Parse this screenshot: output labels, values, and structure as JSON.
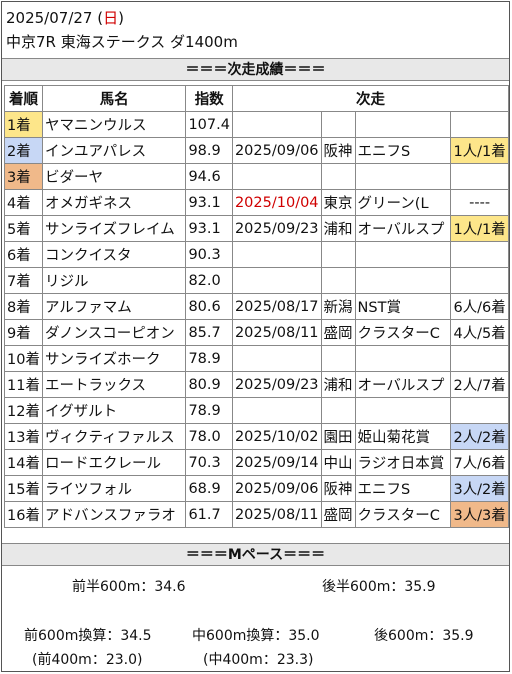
{
  "header": {
    "date_prefix": "2025/07/27 (",
    "weekday": "日",
    "date_suffix": ")",
    "race": "中京7R 東海ステークス ダ1400m"
  },
  "colors": {
    "sunday_red": "#d00000",
    "first_bg": "#fde68a",
    "second_bg": "#c7d7f5",
    "third_bg": "#f0b98a",
    "next_date_red": "#d00000"
  },
  "section_titles": {
    "results": "＝＝＝次走成績＝＝＝",
    "pace": "＝＝＝Mペース＝＝＝"
  },
  "table": {
    "headers": [
      "着順",
      "馬名",
      "指数",
      "次走"
    ],
    "rows": [
      {
        "rank": "1着",
        "name": "ヤマニンウルス",
        "idx": "107.4",
        "date": "",
        "place": "",
        "race": "",
        "result": ""
      },
      {
        "rank": "2着",
        "name": "インユアパレス",
        "idx": "98.9",
        "date": "2025/09/06",
        "place": "阪神",
        "race": "エニフS",
        "result": "1人/1着"
      },
      {
        "rank": "3着",
        "name": "ビダーヤ",
        "idx": "94.6",
        "date": "",
        "place": "",
        "race": "",
        "result": ""
      },
      {
        "rank": "4着",
        "name": "オメガギネス",
        "idx": "93.1",
        "date": "2025/10/04",
        "place": "東京",
        "race": "グリーン(L",
        "result": "----"
      },
      {
        "rank": "5着",
        "name": "サンライズフレイム",
        "idx": "93.1",
        "date": "2025/09/23",
        "place": "浦和",
        "race": "オーバルスプ",
        "result": "1人/1着"
      },
      {
        "rank": "6着",
        "name": "コンクイスタ",
        "idx": "90.3",
        "date": "",
        "place": "",
        "race": "",
        "result": ""
      },
      {
        "rank": "7着",
        "name": "リジル",
        "idx": "82.0",
        "date": "",
        "place": "",
        "race": "",
        "result": ""
      },
      {
        "rank": "8着",
        "name": "アルファマム",
        "idx": "80.6",
        "date": "2025/08/17",
        "place": "新潟",
        "race": "NST賞",
        "result": "6人/6着"
      },
      {
        "rank": "9着",
        "name": "ダノンスコーピオン",
        "idx": "85.7",
        "date": "2025/08/11",
        "place": "盛岡",
        "race": "クラスターC",
        "result": "4人/5着"
      },
      {
        "rank": "10着",
        "name": "サンライズホーク",
        "idx": "78.9",
        "date": "",
        "place": "",
        "race": "",
        "result": ""
      },
      {
        "rank": "11着",
        "name": "エートラックス",
        "idx": "80.9",
        "date": "2025/09/23",
        "place": "浦和",
        "race": "オーバルスプ",
        "result": "2人/7着"
      },
      {
        "rank": "12着",
        "name": "イグザルト",
        "idx": "78.9",
        "date": "",
        "place": "",
        "race": "",
        "result": ""
      },
      {
        "rank": "13着",
        "name": "ヴィクティファルス",
        "idx": "78.0",
        "date": "2025/10/02",
        "place": "園田",
        "race": "姫山菊花賞",
        "result": "2人/2着"
      },
      {
        "rank": "14着",
        "name": "ロードエクレール",
        "idx": "70.3",
        "date": "2025/09/14",
        "place": "中山",
        "race": "ラジオ日本賞",
        "result": "7人/6着"
      },
      {
        "rank": "15着",
        "name": "ライツフォル",
        "idx": "68.9",
        "date": "2025/09/06",
        "place": "阪神",
        "race": "エニフS",
        "result": "3人/2着"
      },
      {
        "rank": "16着",
        "name": "アドバンスファラオ",
        "idx": "61.7",
        "date": "2025/08/11",
        "place": "盛岡",
        "race": "クラスターC",
        "result": "3人/3着"
      }
    ]
  },
  "pace": {
    "first_half": "前半600m：34.6",
    "second_half": "後半600m：35.9",
    "front_600": "前600m換算：34.5",
    "mid_600": "中600m換算：35.0",
    "back_600": "後600m：35.9",
    "front_400": "(前400m：23.0)",
    "mid_400": "(中400m：23.3)"
  }
}
